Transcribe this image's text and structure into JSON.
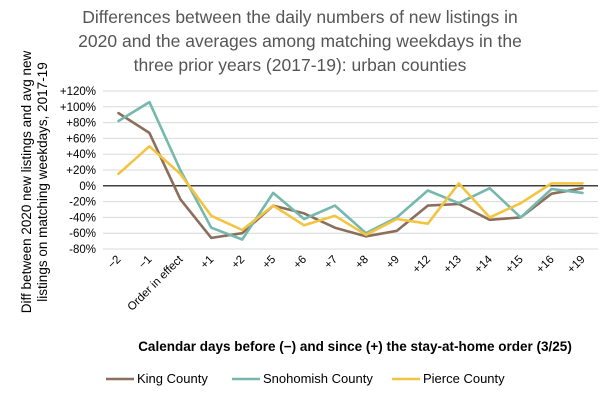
{
  "chart_data": {
    "type": "line",
    "title_lines": [
      "Differences between the daily numbers of new listings in",
      "2020 and the averages among matching weekdays in the",
      "three prior years (2017-19): urban counties"
    ],
    "ylabel_lines": [
      "Diff between 2020 new listings and avg new",
      "listings on matching weekdays, 2017-19"
    ],
    "xlabel": "Calendar days before (−) and since (+) the stay-at-home order (3/25)",
    "categories": [
      "−2",
      "−1",
      "Order in effect",
      "+1",
      "+2",
      "+5",
      "+6",
      "+7",
      "+8",
      "+9",
      "+12",
      "+13",
      "+14",
      "+15",
      "+16",
      "+19"
    ],
    "yticks": [
      120,
      100,
      80,
      60,
      40,
      20,
      0,
      -20,
      -40,
      -60,
      -80
    ],
    "ytick_labels": [
      "+120%",
      "+100%",
      "+80%",
      "+60%",
      "+40%",
      "+20%",
      "0%",
      "-20%",
      "-40%",
      "-60%",
      "-80%"
    ],
    "ylim": [
      -80,
      120
    ],
    "negative_tick_color": "#c00000",
    "grid": true,
    "legend_position": "bottom",
    "series": [
      {
        "name": "King County",
        "color": "#8b6f5c",
        "values": [
          92,
          67,
          -17,
          -66,
          -60,
          -25,
          -35,
          -53,
          -64,
          -57,
          -25,
          -23,
          -43,
          -40,
          -10,
          -3
        ]
      },
      {
        "name": "Snohomish County",
        "color": "#76b8ad",
        "values": [
          82,
          106,
          20,
          -53,
          -68,
          -9,
          -42,
          -25,
          -60,
          -40,
          -6,
          -22,
          -3,
          -40,
          -4,
          -9
        ]
      },
      {
        "name": "Pierce County",
        "color": "#f3c440",
        "values": [
          15,
          50,
          15,
          -38,
          -56,
          -25,
          -50,
          -38,
          -62,
          -42,
          -48,
          3,
          -40,
          -22,
          3,
          3
        ]
      }
    ]
  }
}
